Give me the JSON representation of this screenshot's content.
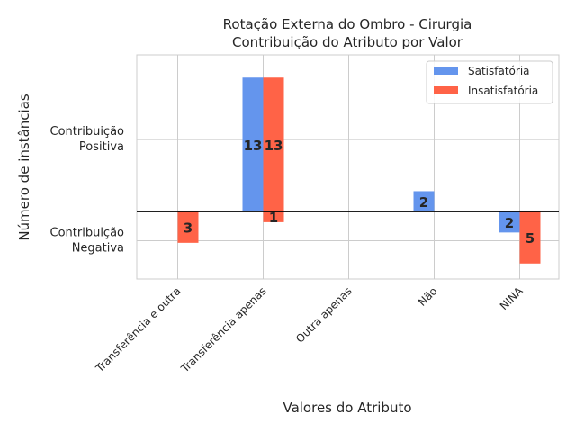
{
  "chart_data": {
    "type": "bar",
    "title": [
      "Rotação Externa do Ombro - Cirurgia",
      "Contribuição do Atributo por Valor"
    ],
    "xlabel": "Valores do Atributo",
    "ylabel": "Número de instâncias",
    "yticks": [
      {
        "value": 7,
        "label": [
          "Contribuição",
          "Positiva"
        ]
      },
      {
        "value": -2.8,
        "label": [
          "Contribuição",
          "Negativa"
        ]
      }
    ],
    "ylim": [
      -6.5,
      15.2
    ],
    "categories": [
      "Transferência e outra",
      "Transferência apenas",
      "Outra apenas",
      "Não",
      "NINA"
    ],
    "series": [
      {
        "name": "Satisfatória",
        "color": "#6495ED",
        "values": [
          0,
          13,
          0,
          2,
          -2
        ]
      },
      {
        "name": "Insatisfatória",
        "color": "#FF6347",
        "values": [
          -3,
          13,
          0,
          0,
          -5
        ]
      }
    ],
    "series2_labels_override": {
      "1": 1
    },
    "insatisfatoria_small_negative_index": 1,
    "zero_line": true,
    "grid": true,
    "legend_position": "top-right"
  }
}
